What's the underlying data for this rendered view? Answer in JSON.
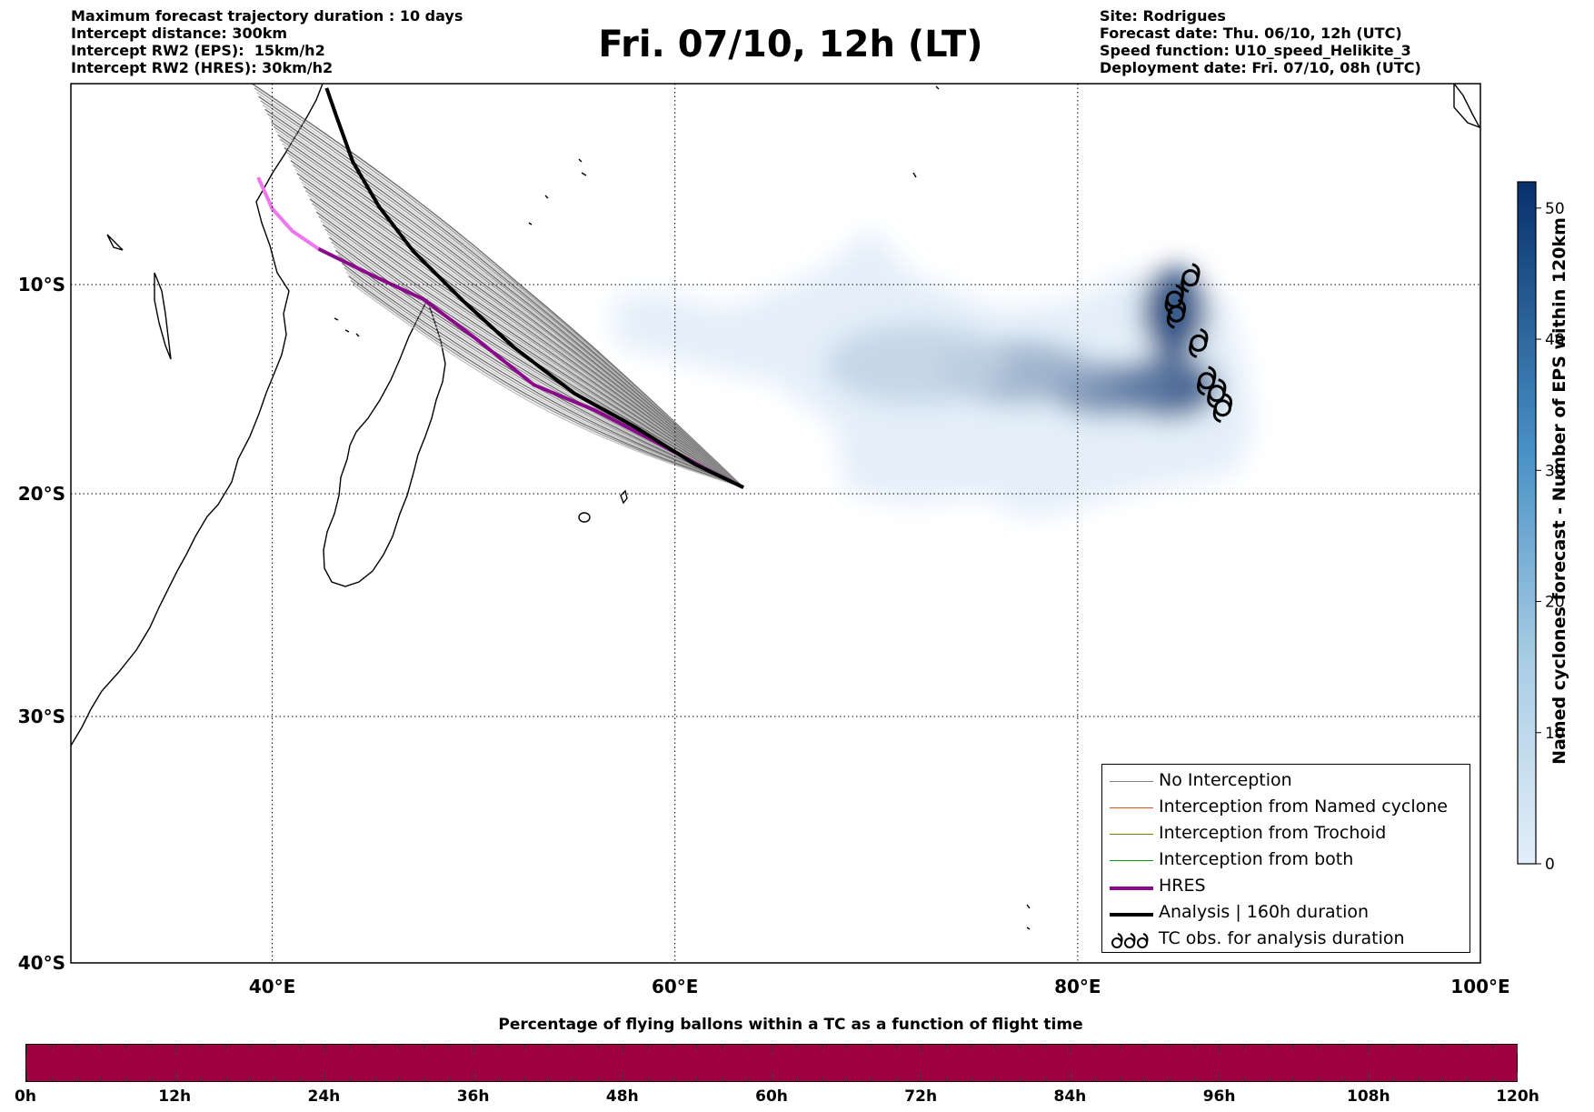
{
  "header_left": [
    "Maximum forecast trajectory duration : 10 days",
    "Intercept distance: 300km",
    "Intercept RW2 (EPS):  15km/h2",
    "Intercept RW2 (HRES): 30km/h2"
  ],
  "title": "Fri. 07/10, 12h (LT)",
  "header_right": [
    "Site: Rodrigues",
    "Forecast date: Thu. 06/10, 12h (UTC)",
    "Speed function: U10_speed_Helikite_3",
    "Deployment date: Fri. 07/10, 08h (UTC)"
  ],
  "map": {
    "lon_range": [
      30,
      100
    ],
    "lat_range": [
      -1,
      -40
    ],
    "lon_ticks": [
      {
        "v": 40,
        "label": "40°E"
      },
      {
        "v": 60,
        "label": "60°E"
      },
      {
        "v": 80,
        "label": "80°E"
      },
      {
        "v": 100,
        "label": "100°E"
      }
    ],
    "lat_ticks": [
      {
        "v": -10,
        "label": "10°S"
      },
      {
        "v": -20,
        "label": "20°S"
      },
      {
        "v": -30,
        "label": "30°S"
      },
      {
        "v": -40,
        "label": "40°S"
      }
    ],
    "grid": "dotted",
    "deployment_site": {
      "lon": 63.4,
      "lat": -19.7
    },
    "analysis_track": [
      [
        63.4,
        -19.7
      ],
      [
        61,
        -18.6
      ],
      [
        58,
        -16.8
      ],
      [
        55,
        -15.2
      ],
      [
        52,
        -13
      ],
      [
        49.5,
        -10.8
      ],
      [
        47,
        -8.5
      ],
      [
        45.3,
        -6.5
      ],
      [
        44,
        -4.5
      ],
      [
        43.2,
        -2.5
      ],
      [
        42.7,
        -1.2
      ]
    ],
    "hres_track": [
      [
        63.4,
        -19.7
      ],
      [
        61.5,
        -18.8
      ],
      [
        59,
        -17.5
      ],
      [
        56,
        -16
      ],
      [
        53,
        -14.8
      ],
      [
        50,
        -12.5
      ],
      [
        47.5,
        -10.7
      ],
      [
        45,
        -9.6
      ],
      [
        42.3,
        -8.4
      ]
    ],
    "hres_track_tail": [
      [
        42.3,
        -8.4
      ],
      [
        41,
        -7.6
      ],
      [
        40,
        -6.6
      ],
      [
        39.3,
        -5.2
      ]
    ],
    "tc_obs": [
      [
        85.6,
        -9.7
      ],
      [
        84.8,
        -10.7
      ],
      [
        84.9,
        -11.4
      ],
      [
        86,
        -12.8
      ],
      [
        86.4,
        -14.6
      ],
      [
        86.9,
        -15.2
      ],
      [
        87.2,
        -15.9
      ]
    ],
    "density_blobs": [
      {
        "lon": 84.8,
        "lat": -11.3,
        "rx": 1.6,
        "ry": 2.0,
        "level": 48
      },
      {
        "lon": 84.5,
        "lat": -14.9,
        "rx": 2.5,
        "ry": 1.4,
        "level": 42
      },
      {
        "lon": 81.5,
        "lat": -15.0,
        "rx": 3.0,
        "ry": 1.2,
        "level": 30
      },
      {
        "lon": 77,
        "lat": -14.2,
        "rx": 4.0,
        "ry": 1.4,
        "level": 18
      },
      {
        "lon": 72,
        "lat": -13.8,
        "rx": 4.5,
        "ry": 1.8,
        "level": 8
      }
    ]
  },
  "colorbar_v": {
    "label": "Named cyclones forecast - Number of EPS within 120km",
    "range": [
      0,
      52
    ],
    "ticks": [
      0,
      10,
      20,
      30,
      40,
      50
    ],
    "color_low": "#e3eef9",
    "color_high": "#08306b"
  },
  "legend": [
    {
      "label": "No Interception",
      "color": "#808080",
      "width": 1.2,
      "type": "line"
    },
    {
      "label": "Interception from Named cyclone",
      "color": "#e8531a",
      "width": 1.2,
      "type": "line"
    },
    {
      "label": "Interception from Trochoid",
      "color": "#808000",
      "width": 1.2,
      "type": "line"
    },
    {
      "label": "Interception from both",
      "color": "#1a8f1a",
      "width": 1.2,
      "type": "line"
    },
    {
      "label": "HRES",
      "color": "#8b0a8b",
      "width": 4,
      "type": "line"
    },
    {
      "label": "Analysis | 160h duration",
      "color": "#000000",
      "width": 4,
      "type": "line"
    },
    {
      "label": "TC obs. for analysis duration",
      "color": "#000000",
      "type": "tc"
    }
  ],
  "percentage_bar": {
    "title": "Percentage of flying ballons within a TC as a function of flight time",
    "color": "#9e0040",
    "ticks": [
      "0h",
      "12h",
      "24h",
      "36h",
      "48h",
      "60h",
      "72h",
      "84h",
      "96h",
      "108h",
      "120h"
    ]
  },
  "colors": {
    "land_outline": "#000000",
    "ens_track": "#808080",
    "hres": "#8b0a8b",
    "hres_tail": "#ee77ee",
    "analysis": "#000000"
  }
}
